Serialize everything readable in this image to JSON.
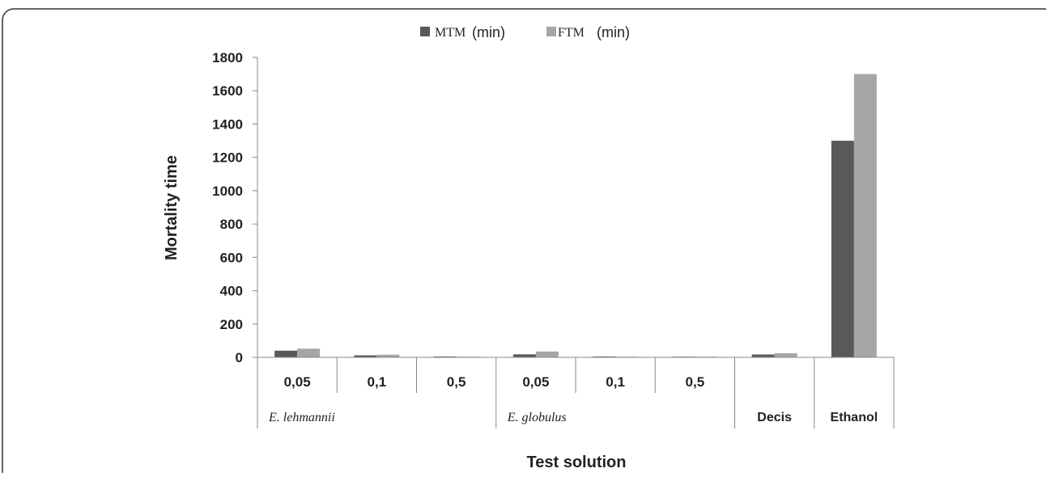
{
  "chart_data": {
    "type": "bar",
    "ylabel": "Mortality time",
    "xlabel": "Test solution",
    "ylim": [
      0,
      1800
    ],
    "yticks": [
      0,
      200,
      400,
      600,
      800,
      1000,
      1200,
      1400,
      1600,
      1800
    ],
    "categories": [
      "0,05",
      "0,1",
      "0,5",
      "0,05",
      "0,1",
      "0,5",
      "",
      ""
    ],
    "groups": [
      {
        "label": "E. lehmannii",
        "style": "italic",
        "span": [
          0,
          2
        ]
      },
      {
        "label": "E. globulus",
        "style": "italic",
        "span": [
          3,
          5
        ]
      },
      {
        "label": "Decis",
        "style": "bold",
        "span": [
          6,
          6
        ]
      },
      {
        "label": "Ethanol",
        "style": "bold",
        "span": [
          7,
          7
        ]
      }
    ],
    "series": [
      {
        "name": "MTM",
        "unit": "(min)",
        "color": "#595959",
        "values": [
          40,
          12,
          5,
          18,
          5,
          4,
          17,
          1300
        ]
      },
      {
        "name": "FTM",
        "unit": "(min)",
        "color": "#a6a6a6",
        "values": [
          52,
          16,
          4,
          35,
          4,
          4,
          25,
          1700
        ]
      }
    ],
    "legend_position": "top",
    "grid": false
  }
}
